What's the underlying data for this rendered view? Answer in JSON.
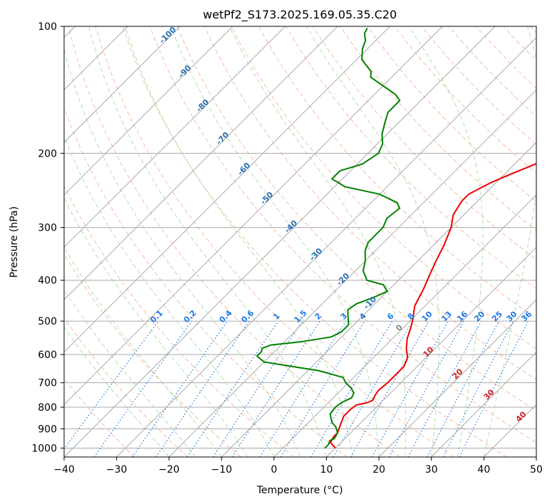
{
  "chart_data": {
    "type": "line",
    "title": "wetPf2_S173.2025.169.05.35.C20",
    "xlabel": "Temperature (°C)",
    "ylabel": "Pressure (hPa)",
    "xlim": [
      -40,
      50
    ],
    "ylim": [
      1050,
      100
    ],
    "y_scale": "log",
    "grid": true,
    "x_ticks": [
      "−40",
      "−30",
      "−20",
      "−10",
      "0",
      "10",
      "20",
      "30",
      "40",
      "50"
    ],
    "y_ticks": [
      "100",
      "200",
      "300",
      "400",
      "500",
      "600",
      "700",
      "800",
      "900",
      "1000"
    ],
    "skew_degrees": 45,
    "series": [
      {
        "type": "temperature",
        "color": "#ee0000",
        "points": [
          [
            10.0,
            1000
          ],
          [
            8.0,
            970
          ],
          [
            7.5,
            940
          ],
          [
            7.5,
            920
          ],
          [
            6.5,
            880
          ],
          [
            5.5,
            840
          ],
          [
            5.5,
            810
          ],
          [
            5.8,
            790
          ],
          [
            7.5,
            780
          ],
          [
            8.0,
            770
          ],
          [
            7.5,
            750
          ],
          [
            7.2,
            730
          ],
          [
            7.5,
            700
          ],
          [
            7.5,
            670
          ],
          [
            7.5,
            640
          ],
          [
            6.5,
            610
          ],
          [
            4.5,
            580
          ],
          [
            2.8,
            550
          ],
          [
            1.5,
            520
          ],
          [
            0.5,
            500
          ],
          [
            -2.0,
            460
          ],
          [
            -3.5,
            420
          ],
          [
            -5.0,
            390
          ],
          [
            -6.5,
            360
          ],
          [
            -8.0,
            330
          ],
          [
            -10.0,
            300
          ],
          [
            -12.0,
            280
          ],
          [
            -13.0,
            260
          ],
          [
            -13.0,
            250
          ],
          [
            -11.0,
            235
          ],
          [
            -9.0,
            225
          ],
          [
            -6.0,
            212
          ],
          [
            -4.0,
            200
          ],
          [
            -3.0,
            190
          ],
          [
            -2.5,
            180
          ],
          [
            -2.5,
            170
          ],
          [
            -3.0,
            160
          ],
          [
            -3.5,
            150
          ],
          [
            -4.0,
            140
          ],
          [
            -4.5,
            130
          ],
          [
            -5.5,
            120
          ],
          [
            -6.0,
            113
          ],
          [
            -6.0,
            107
          ],
          [
            -6.0,
            103
          ]
        ]
      },
      {
        "type": "dewpoint",
        "color": "#008000",
        "points": [
          [
            8.0,
            1000
          ],
          [
            8.0,
            980
          ],
          [
            7.5,
            960
          ],
          [
            8.0,
            950
          ],
          [
            7.5,
            920
          ],
          [
            6.0,
            890
          ],
          [
            4.5,
            870
          ],
          [
            3.5,
            850
          ],
          [
            2.5,
            830
          ],
          [
            2.2,
            800
          ],
          [
            2.5,
            780
          ],
          [
            3.5,
            760
          ],
          [
            3.0,
            740
          ],
          [
            1.5,
            720
          ],
          [
            -0.5,
            700
          ],
          [
            -2.0,
            680
          ],
          [
            -8.0,
            655
          ],
          [
            -14.0,
            640
          ],
          [
            -20.0,
            625
          ],
          [
            -22.5,
            605
          ],
          [
            -22.5,
            590
          ],
          [
            -23.0,
            580
          ],
          [
            -22.0,
            570
          ],
          [
            -17.0,
            560
          ],
          [
            -12.0,
            545
          ],
          [
            -11.0,
            530
          ],
          [
            -11.0,
            510
          ],
          [
            -12.5,
            490
          ],
          [
            -14.0,
            470
          ],
          [
            -13.5,
            455
          ],
          [
            -11.5,
            440
          ],
          [
            -10.0,
            425
          ],
          [
            -12.0,
            410
          ],
          [
            -16.0,
            400
          ],
          [
            -18.5,
            380
          ],
          [
            -20.0,
            360
          ],
          [
            -22.0,
            340
          ],
          [
            -23.0,
            325
          ],
          [
            -23.0,
            300
          ],
          [
            -24.0,
            285
          ],
          [
            -23.5,
            270
          ],
          [
            -25.0,
            262
          ],
          [
            -30.0,
            250
          ],
          [
            -38.0,
            240
          ],
          [
            -42.0,
            230
          ],
          [
            -42.0,
            220
          ],
          [
            -39.0,
            212
          ],
          [
            -38.0,
            200
          ],
          [
            -39.0,
            190
          ],
          [
            -41.0,
            180
          ],
          [
            -42.5,
            170
          ],
          [
            -44.0,
            160
          ],
          [
            -44.0,
            150
          ],
          [
            -46.0,
            145
          ],
          [
            -54.0,
            132
          ],
          [
            -55.0,
            128
          ],
          [
            -59.0,
            120
          ],
          [
            -61.0,
            113
          ],
          [
            -62.0,
            108
          ],
          [
            -63.5,
            104
          ],
          [
            -64.0,
            101
          ]
        ]
      }
    ],
    "height_labels": [
      "-100",
      "-90",
      "-80",
      "-70",
      "-60",
      "-50",
      "-40",
      "-30",
      "-20",
      "-10"
    ],
    "mixing_ratio_labels": [
      "0.1",
      "0.2",
      "0.4",
      "0.6",
      "1",
      "1.5",
      "2",
      "3",
      "4",
      "6",
      "8",
      "10",
      "13",
      "16",
      "20",
      "25",
      "30",
      "36"
    ],
    "theta_labels": [
      "0",
      "10",
      "20",
      "30",
      "40"
    ],
    "colors": {
      "isotherm": "#aaaaaa",
      "isobar": "#aaaaaa",
      "dry_adiabat": "#f4a582",
      "moist_adiabat": "#a6d8a6",
      "mixing_ratio": "#1e78e0",
      "height_label": "#2a6fb0",
      "theta_label": "#cc2222",
      "theta_zero": "#888888"
    }
  }
}
